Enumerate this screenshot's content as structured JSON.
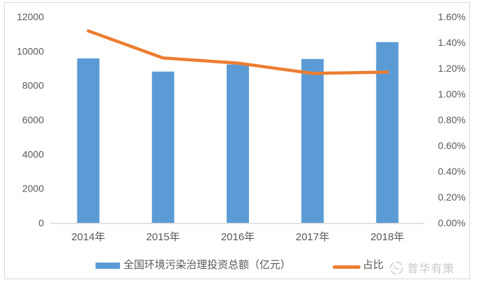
{
  "chart_data": {
    "type": "bar",
    "subtype": "combo-bar-line-dual-axis",
    "title": "",
    "categories": [
      "2014年",
      "2015年",
      "2016年",
      "2017年",
      "2018年"
    ],
    "series": [
      {
        "name": "全国环境污染治理投资总额（亿元）",
        "type": "bar",
        "axis": "left",
        "color": "#5B9BD5",
        "values": [
          9576,
          8806,
          9220,
          9539,
          10523
        ]
      },
      {
        "name": "占比",
        "type": "line",
        "axis": "right",
        "color": "#ED7D31",
        "values": [
          1.49,
          1.28,
          1.24,
          1.16,
          1.17
        ]
      }
    ],
    "left_axis": {
      "min": 0,
      "max": 12000,
      "step": 2000,
      "tick_labels": [
        "0",
        "2000",
        "4000",
        "6000",
        "8000",
        "10000",
        "12000"
      ]
    },
    "right_axis": {
      "min": 0,
      "max": 1.6,
      "step": 0.2,
      "tick_labels": [
        "0.00%",
        "0.20%",
        "0.40%",
        "0.60%",
        "0.80%",
        "1.00%",
        "1.20%",
        "1.40%",
        "1.60%"
      ]
    },
    "grid": false,
    "legend_position": "bottom"
  },
  "watermark": {
    "text": "普华有策"
  },
  "style": {
    "axis_text_color": "#595959",
    "axis_line_color": "#d9d9d9",
    "border_color": "#d9d9d9",
    "watermark_color": "#c9c9c9",
    "background": "#ffffff"
  }
}
